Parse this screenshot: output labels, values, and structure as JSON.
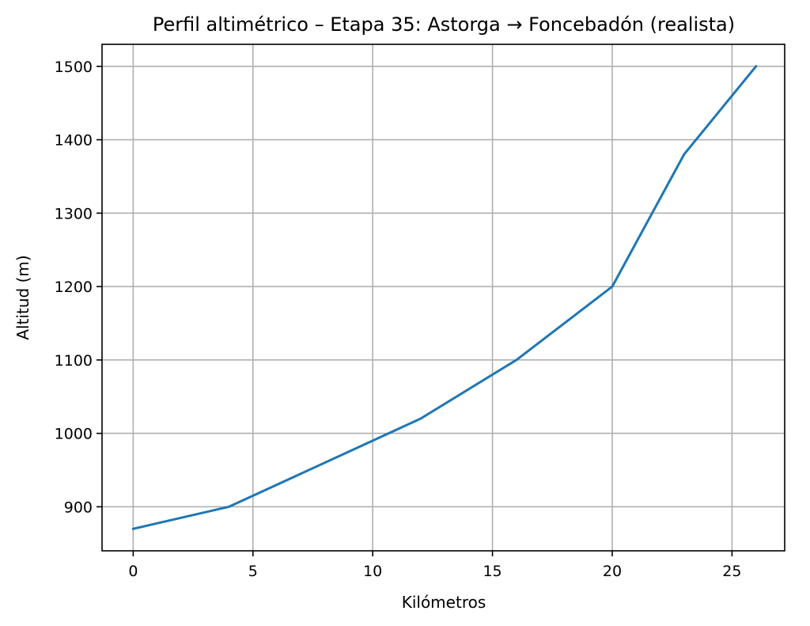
{
  "chart_data": {
    "type": "line",
    "title": "Perfil altimétrico – Etapa 35: Astorga → Foncebadón (realista)",
    "xlabel": "Kilómetros",
    "ylabel": "Altitud (m)",
    "xlim": [
      -1.3,
      27.2
    ],
    "ylim": [
      840,
      1530
    ],
    "xticks": [
      0,
      5,
      10,
      15,
      20,
      25
    ],
    "yticks": [
      900,
      1000,
      1100,
      1200,
      1300,
      1400,
      1500
    ],
    "grid": true,
    "series": [
      {
        "color": "#1f77b4",
        "x": [
          0,
          4,
          12,
          16,
          20,
          23,
          26
        ],
        "y": [
          870,
          900,
          1020,
          1100,
          1200,
          1380,
          1500
        ]
      }
    ]
  }
}
